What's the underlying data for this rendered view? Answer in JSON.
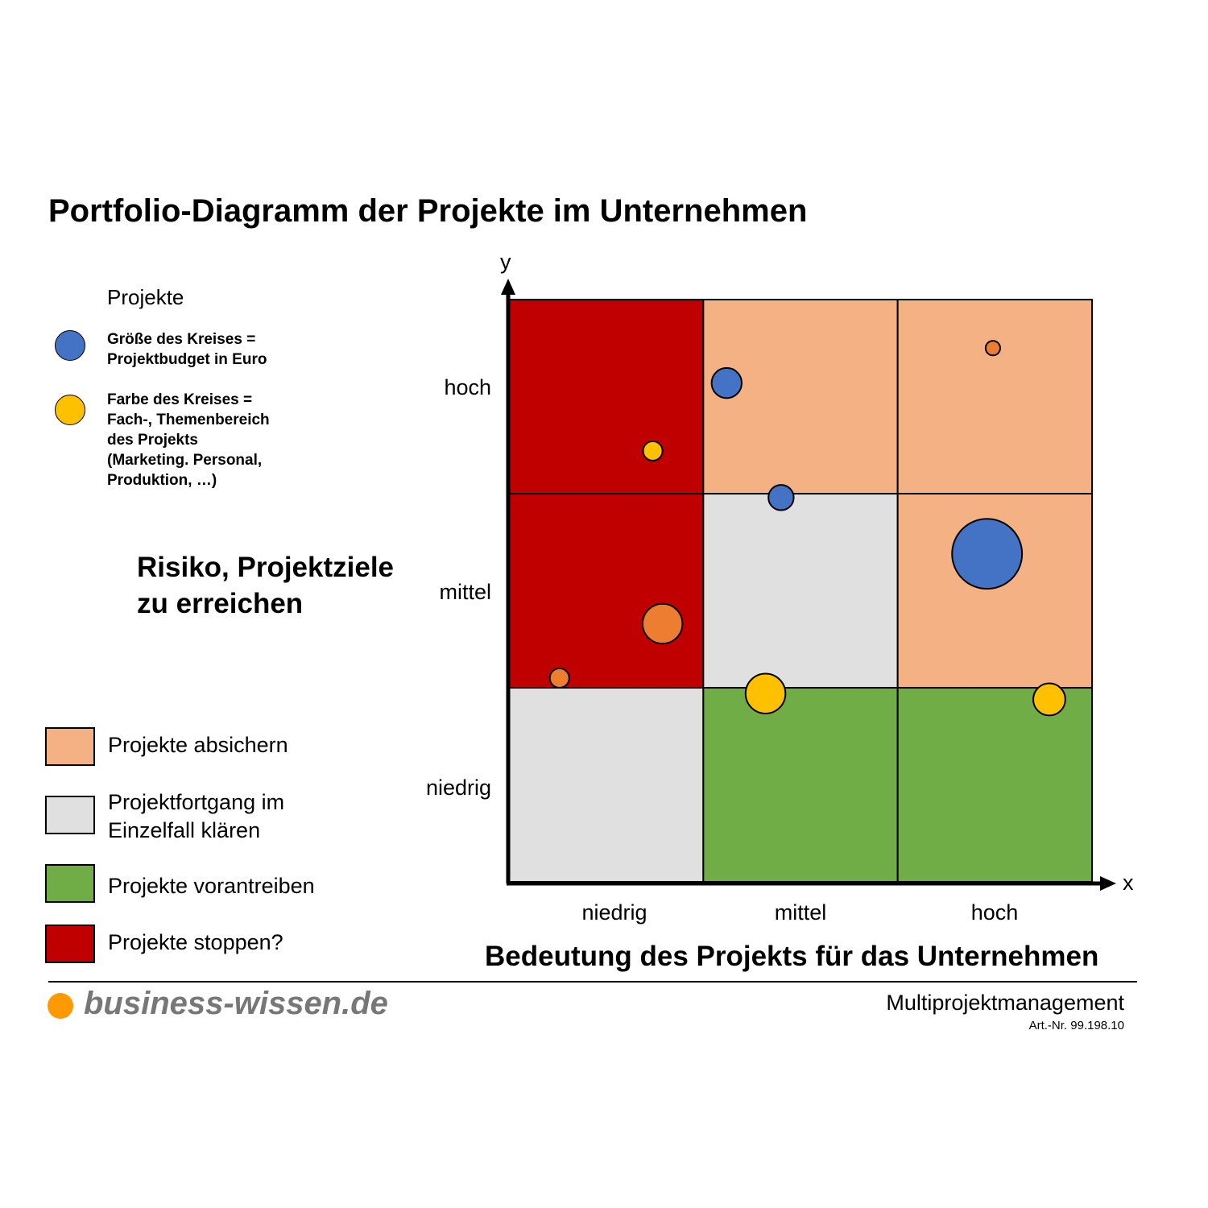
{
  "title": "Portfolio-Diagramm der Projekte im Unternehmen",
  "legend": {
    "heading": "Projekte",
    "size_note": [
      "Größe des Kreises =",
      "Projektbudget in Euro"
    ],
    "color_note": [
      "Farbe des Kreises =",
      "Fach-, Themenbereich",
      "des Projekts",
      "(Marketing. Personal,",
      "Produktion, …)"
    ],
    "size_circle_color": "#4472C4",
    "color_circle_color": "#FFC000"
  },
  "y_axis_title": [
    "Risiko, Projektziele",
    "zu erreichen"
  ],
  "x_axis_title": "Bedeutung des Projekts für das Unternehmen",
  "area_legend": [
    {
      "label": "Projekte absichern",
      "color": "#F4B183"
    },
    {
      "label": "Projektfortgang im\nEinzelfall klären",
      "color": "#E0E0E0"
    },
    {
      "label": "Projekte vorantreiben",
      "color": "#70AD47"
    },
    {
      "label": "Projekte stoppen?",
      "color": "#C00000"
    }
  ],
  "chart_data": {
    "type": "scatter",
    "subtype": "bubble-portfolio-matrix",
    "x_axis_letter": "x",
    "y_axis_letter": "y",
    "x_categories": [
      "niedrig",
      "mittel",
      "hoch"
    ],
    "y_categories": [
      "niedrig",
      "mittel",
      "hoch"
    ],
    "xlim": [
      0,
      3
    ],
    "ylim": [
      0,
      3
    ],
    "cells": [
      {
        "x": 0,
        "y": 2,
        "color": "#C00000"
      },
      {
        "x": 1,
        "y": 2,
        "color": "#F4B183"
      },
      {
        "x": 2,
        "y": 2,
        "color": "#F4B183"
      },
      {
        "x": 0,
        "y": 1,
        "color": "#C00000"
      },
      {
        "x": 1,
        "y": 1,
        "color": "#E0E0E0"
      },
      {
        "x": 2,
        "y": 1,
        "color": "#F4B183"
      },
      {
        "x": 0,
        "y": 0,
        "color": "#E0E0E0"
      },
      {
        "x": 1,
        "y": 0,
        "color": "#70AD47"
      },
      {
        "x": 2,
        "y": 0,
        "color": "#70AD47"
      }
    ],
    "bubbles": [
      {
        "x": 2.49,
        "y": 2.75,
        "size": 0.075,
        "color": "#ED7D31"
      },
      {
        "x": 1.12,
        "y": 2.57,
        "size": 0.155,
        "color": "#4472C4"
      },
      {
        "x": 0.74,
        "y": 2.22,
        "size": 0.1,
        "color": "#FFC000"
      },
      {
        "x": 1.4,
        "y": 1.98,
        "size": 0.13,
        "color": "#4472C4"
      },
      {
        "x": 2.46,
        "y": 1.69,
        "size": 0.36,
        "color": "#4472C4"
      },
      {
        "x": 0.79,
        "y": 1.33,
        "size": 0.205,
        "color": "#ED7D31"
      },
      {
        "x": 0.26,
        "y": 1.05,
        "size": 0.1,
        "color": "#ED7D31"
      },
      {
        "x": 1.32,
        "y": 0.97,
        "size": 0.205,
        "color": "#FFC000"
      },
      {
        "x": 2.78,
        "y": 0.94,
        "size": 0.165,
        "color": "#FFC000"
      }
    ]
  },
  "footer": {
    "brand": "business-wissen.de",
    "brand_dot_color": "#FF9900",
    "product": "Multiprojektmanagement",
    "article": "Art.-Nr. 99.198.10"
  }
}
